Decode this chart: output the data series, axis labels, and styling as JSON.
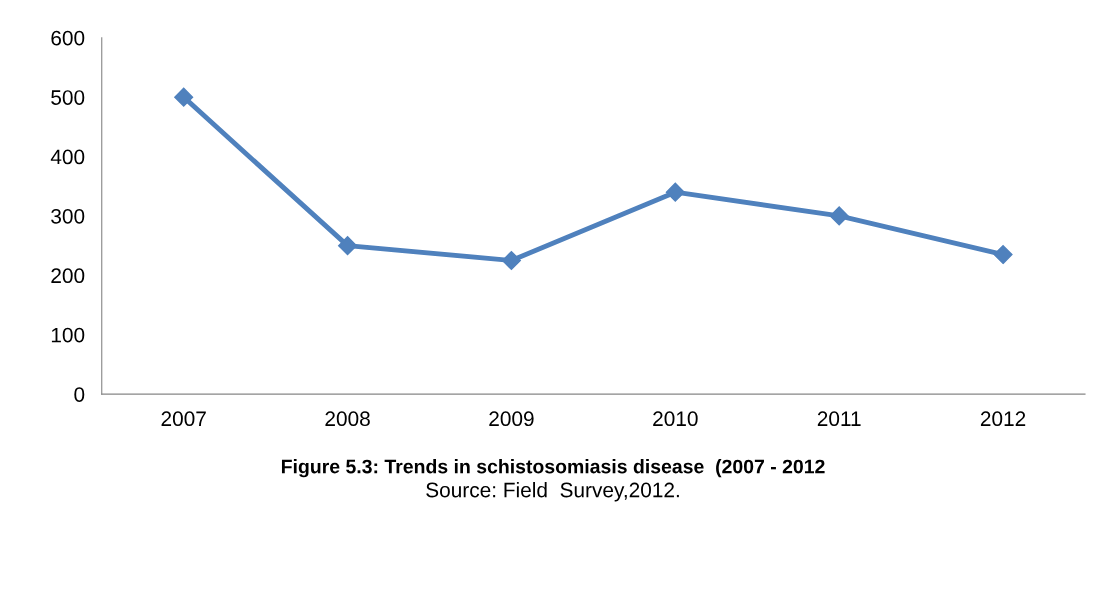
{
  "chart_data": {
    "type": "line",
    "title": "Figure 5.3: Trends in schistosomiasis disease  (2007 - 2012",
    "annotations": [
      "Source: Field  Survey,2012."
    ],
    "categories": [
      "2007",
      "2008",
      "2009",
      "2010",
      "2011",
      "2012"
    ],
    "series": [
      {
        "color": "#4f81bd",
        "values": [
          500,
          250,
          225,
          340,
          300,
          235
        ]
      }
    ],
    "ylim": [
      0,
      600
    ],
    "yticks": [
      0,
      100,
      200,
      300,
      400,
      500,
      600
    ],
    "grid": false,
    "legend": false,
    "marker": "diamond",
    "line_style": "solid"
  }
}
